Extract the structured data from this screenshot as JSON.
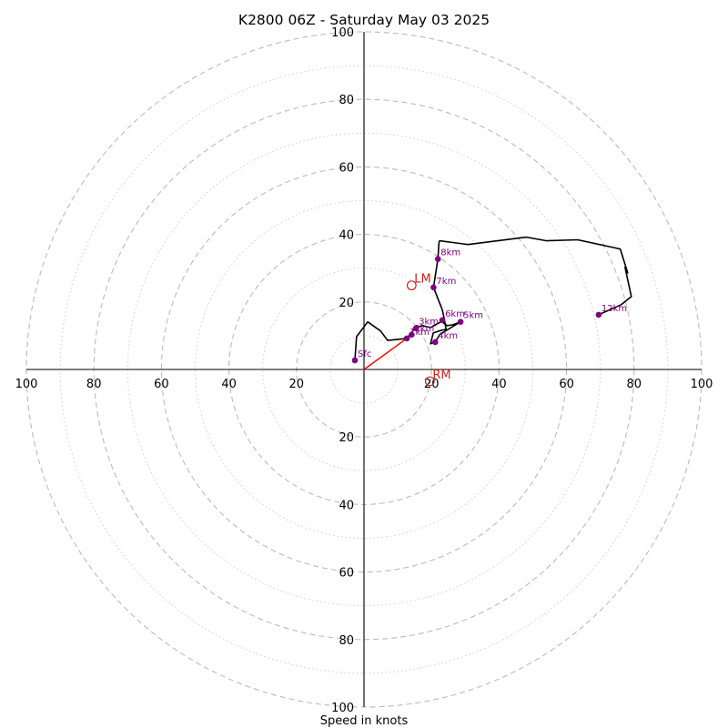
{
  "chart_data": {
    "type": "hodograph",
    "title": "K2800 06Z - Saturday May 03 2025",
    "xlabel": "Speed in knots",
    "range": [
      -100,
      100
    ],
    "rings_major": [
      20,
      40,
      60,
      80,
      100
    ],
    "rings_minor": [
      10,
      30,
      50,
      70,
      90
    ],
    "tick_labels": {
      "left": [
        "100",
        "80",
        "60",
        "40",
        "20"
      ],
      "right": [
        "20",
        "40",
        "60",
        "80",
        "100"
      ],
      "top": [
        "100",
        "80",
        "60",
        "40",
        "20"
      ],
      "bottom": [
        "20",
        "40",
        "60",
        "80",
        "100"
      ]
    },
    "trace": [
      [
        -2.7,
        2.7
      ],
      [
        -2.2,
        9.7
      ],
      [
        1.1,
        14.1
      ],
      [
        4.9,
        11.4
      ],
      [
        7.0,
        8.6
      ],
      [
        12.7,
        9.2
      ],
      [
        15.1,
        12.2
      ],
      [
        17.3,
        13.0
      ],
      [
        19.7,
        12.4
      ],
      [
        21.1,
        13.2
      ],
      [
        23.0,
        14.2
      ],
      [
        24.6,
        13.0
      ],
      [
        26.2,
        13.2
      ],
      [
        28.6,
        14.1
      ],
      [
        24.9,
        11.9
      ],
      [
        22.4,
        10.3
      ],
      [
        21.1,
        8.1
      ],
      [
        19.7,
        7.6
      ],
      [
        20.5,
        10.8
      ],
      [
        22.2,
        11.4
      ],
      [
        24.3,
        11.9
      ],
      [
        23.8,
        14.9
      ],
      [
        23.2,
        17.6
      ],
      [
        20.6,
        24.3
      ],
      [
        21.9,
        32.7
      ],
      [
        22.2,
        37.6
      ],
      [
        22.4,
        38.1
      ],
      [
        30.8,
        37.0
      ],
      [
        48.1,
        39.2
      ],
      [
        54.1,
        38.1
      ],
      [
        63.2,
        38.4
      ],
      [
        75.9,
        35.7
      ],
      [
        78.1,
        28.6
      ],
      [
        77.3,
        30.3
      ],
      [
        79.2,
        21.6
      ],
      [
        76.2,
        19.2
      ],
      [
        69.5,
        16.2
      ]
    ],
    "height_markers": [
      {
        "label": "Sfc",
        "u": -2.7,
        "v": 2.7
      },
      {
        "label": "1km",
        "u": 12.7,
        "v": 9.2
      },
      {
        "label": "2km",
        "u": 14.1,
        "v": 10.3
      },
      {
        "label": "3km",
        "u": 15.4,
        "v": 12.2
      },
      {
        "label": "4km",
        "u": 21.1,
        "v": 8.1
      },
      {
        "label": "5km",
        "u": 28.6,
        "v": 14.1
      },
      {
        "label": "6km",
        "u": 23.2,
        "v": 14.6
      },
      {
        "label": "7km",
        "u": 20.6,
        "v": 24.3
      },
      {
        "label": "8km",
        "u": 21.9,
        "v": 32.7
      },
      {
        "label": "12km",
        "u": 69.5,
        "v": 16.2
      }
    ],
    "storm_motion": [
      {
        "label": "LM",
        "u": 14.1,
        "v": 24.9
      },
      {
        "label": "RM",
        "u": 19.5,
        "v": -3.5
      }
    ],
    "mean_wind_vector": {
      "u": 12.7,
      "v": 9.2
    },
    "colors": {
      "trace": "#000000",
      "markers": "#800080",
      "storm_motion": "#cc2222",
      "vector": "#ff0000",
      "ring_major": "#bbbbbb",
      "ring_minor": "#cfcfcf"
    }
  }
}
